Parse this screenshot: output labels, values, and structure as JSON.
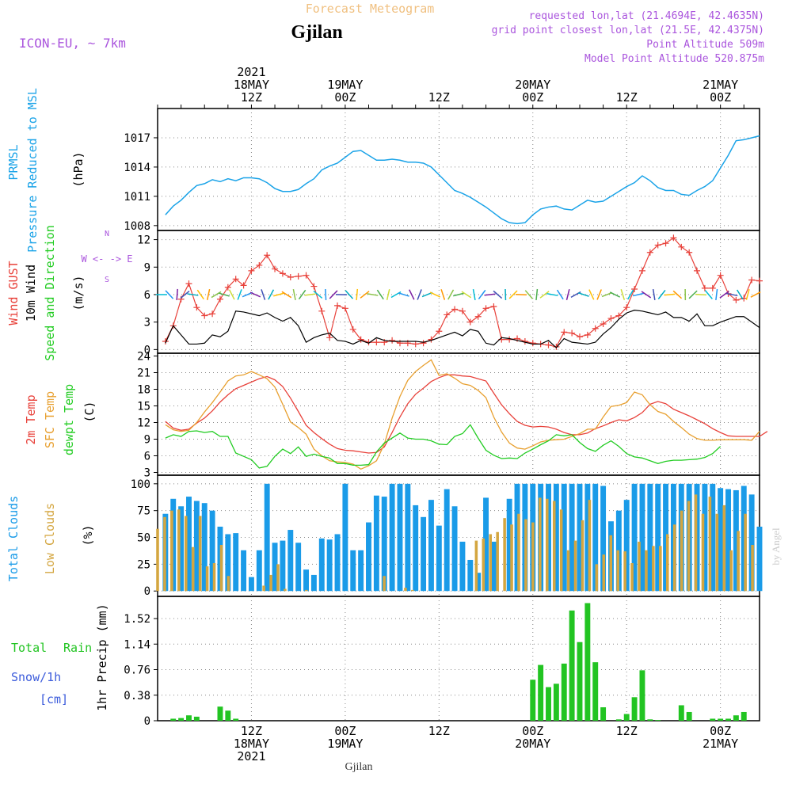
{
  "header": {
    "title": "Forecast Meteogram",
    "location": "Gjilan",
    "model": "ICON-EU, ~ 7km",
    "requested": "requested lon,lat (21.4694E, 42.4635N)",
    "grid_point": "grid point closest lon,lat (21.5E, 42.4375N)",
    "point_alt": "Point Altitude 509m",
    "model_alt": "Model Point Altitude 520.875m",
    "footer_location": "Gjilan",
    "credit": "by Angel"
  },
  "colors": {
    "pressure": "#1aa3e8",
    "gust": "#e8413a",
    "wind": "#000000",
    "temp2m": "#e8413a",
    "sfc": "#e8a030",
    "dewpt": "#22cc22",
    "total_clouds": "#1a9be8",
    "low_clouds": "#d4a640",
    "rain": "#22c422",
    "snow": "#3b5bdb",
    "purple": "#aa55dd"
  },
  "chart_data": [
    {
      "type": "line",
      "title": "PRMSL Pressure Reduced to MSL",
      "ylabel": "(hPa)",
      "ylim": [
        1007.5,
        1020
      ],
      "yticks": [
        1008,
        1011,
        1014,
        1017
      ],
      "x_hours": [
        1,
        3,
        5,
        7,
        9,
        11,
        13,
        15,
        17,
        19,
        21,
        23,
        25,
        27,
        29,
        31,
        33,
        35,
        37,
        39,
        41,
        43,
        45,
        47,
        49,
        51,
        53,
        55,
        57,
        59,
        61,
        63,
        65,
        67,
        69,
        71,
        73,
        75,
        77
      ],
      "series": [
        {
          "name": "PRMSL",
          "x": [
            1,
            2,
            3,
            4,
            5,
            6,
            7,
            8,
            9,
            10,
            11,
            12,
            13,
            14,
            15,
            16,
            17,
            18,
            19,
            20,
            21,
            22,
            23,
            24,
            25,
            26,
            27,
            28,
            29,
            30,
            31,
            32,
            33,
            34,
            35,
            36,
            37,
            38,
            39,
            40,
            41,
            42,
            43,
            44,
            45,
            46,
            47,
            48,
            49,
            50,
            51,
            52,
            53,
            54,
            55,
            56,
            57,
            58,
            59,
            60,
            61,
            62,
            63,
            64,
            65,
            66,
            67,
            68,
            69,
            70,
            71,
            72,
            73,
            74,
            75,
            76,
            77
          ],
          "values": [
            1009.1,
            1010.0,
            1010.6,
            1011.4,
            1012.1,
            1012.3,
            1012.7,
            1012.5,
            1012.8,
            1012.6,
            1012.9,
            1012.9,
            1012.8,
            1012.4,
            1011.8,
            1011.5,
            1011.5,
            1011.7,
            1012.3,
            1012.8,
            1013.7,
            1014.1,
            1014.4,
            1015.0,
            1015.6,
            1015.7,
            1015.2,
            1014.7,
            1014.7,
            1014.8,
            1014.7,
            1014.5,
            1014.5,
            1014.4,
            1014.0,
            1013.2,
            1012.4,
            1011.6,
            1011.3,
            1010.9,
            1010.4,
            1009.9,
            1009.3,
            1008.7,
            1008.3,
            1008.2,
            1008.3,
            1009.1,
            1009.7,
            1009.9,
            1010.0,
            1009.7,
            1009.6,
            1010.1,
            1010.6,
            1010.4,
            1010.5,
            1011.0,
            1011.5,
            1012.0,
            1012.4,
            1013.1,
            1012.6,
            1011.9,
            1011.6,
            1011.6,
            1011.2,
            1011.1,
            1011.6,
            1012.0,
            1012.6,
            1013.9,
            1015.2,
            1016.7,
            1016.8,
            1017.0,
            1017.2
          ]
        }
      ]
    },
    {
      "type": "line",
      "title": "Wind GUST / 10m Wind Speed and Direction",
      "ylabel": "(m/s)",
      "ylim": [
        -0.4,
        13
      ],
      "yticks": [
        0,
        3,
        6,
        9,
        12
      ],
      "series": [
        {
          "name": "Wind GUST",
          "values": [
            0.9,
            2.6,
            5.5,
            7.2,
            4.6,
            3.7,
            3.9,
            5.5,
            6.8,
            7.7,
            7.0,
            8.6,
            9.2,
            10.3,
            8.8,
            8.3,
            7.9,
            8.0,
            8.1,
            6.9,
            4.2,
            1.3,
            4.8,
            4.5,
            2.2,
            1.1,
            0.8,
            0.8,
            0.8,
            1.0,
            0.7,
            0.7,
            0.6,
            0.7,
            1.1,
            2.0,
            3.8,
            4.4,
            4.2,
            3.0,
            3.6,
            4.5,
            4.7,
            1.1,
            1.1,
            1.2,
            0.9,
            0.7,
            0.6,
            0.5,
            0.3,
            1.9,
            1.8,
            1.4,
            1.6,
            2.3,
            2.8,
            3.4,
            3.7,
            4.6,
            6.6,
            8.6,
            10.6,
            11.4,
            11.6,
            12.2,
            11.2,
            10.6,
            8.6,
            6.7,
            6.7,
            8.1,
            6.1,
            5.4,
            5.6,
            7.6,
            7.5
          ],
          "x0": 1
        },
        {
          "name": "10m Wind",
          "values": [
            0.7,
            2.6,
            1.6,
            0.6,
            0.6,
            0.7,
            1.6,
            1.4,
            2.0,
            4.2,
            4.1,
            3.9,
            3.7,
            4.0,
            3.5,
            3.1,
            3.5,
            2.6,
            0.8,
            1.3,
            1.6,
            1.8,
            1.0,
            0.9,
            0.6,
            1.0,
            0.7,
            1.3,
            1.0,
            0.9,
            0.9,
            0.9,
            0.9,
            0.8,
            1.0,
            1.3,
            1.6,
            1.9,
            1.5,
            2.2,
            2.0,
            0.7,
            0.5,
            1.3,
            1.2,
            1.0,
            0.8,
            0.6,
            0.6,
            1.0,
            0.2,
            1.2,
            0.8,
            0.7,
            0.6,
            0.8,
            1.7,
            2.4,
            3.3,
            4.0,
            4.3,
            4.2,
            4.0,
            3.8,
            4.1,
            3.5,
            3.5,
            3.1,
            3.9,
            2.6,
            2.6,
            3.0,
            3.3,
            3.6,
            3.6,
            3.0,
            2.4
          ],
          "x0": 1
        }
      ]
    },
    {
      "type": "line",
      "title": "2m Temp / SFC Temp / dewpt Temp",
      "ylabel": "(C)",
      "ylim": [
        2.5,
        24.5
      ],
      "yticks": [
        3,
        6,
        9,
        12,
        15,
        18,
        21,
        24
      ],
      "series": [
        {
          "name": "2m Temp",
          "values": [
            12.2,
            11.0,
            10.6,
            10.8,
            11.9,
            12.8,
            14.1,
            15.7,
            17.0,
            18.1,
            18.7,
            19.3,
            19.9,
            20.3,
            19.7,
            18.5,
            16.4,
            14.0,
            11.5,
            10.2,
            9.1,
            8.1,
            7.3,
            7.0,
            6.9,
            6.7,
            6.5,
            6.6,
            7.6,
            10.2,
            13.0,
            15.4,
            17.1,
            18.2,
            19.4,
            20.1,
            20.6,
            20.6,
            20.4,
            20.3,
            19.9,
            19.5,
            17.3,
            15.2,
            13.6,
            12.2,
            11.5,
            11.2,
            11.3,
            11.2,
            10.8,
            10.2,
            9.8,
            9.8,
            10.1,
            10.9,
            11.4,
            12.0,
            12.5,
            12.3,
            12.9,
            13.8,
            15.3,
            15.8,
            15.4,
            14.4,
            13.8,
            13.2,
            12.5,
            11.8,
            10.9,
            10.2,
            9.6,
            9.5,
            9.5,
            9.5,
            9.5,
            10.4
          ],
          "x0": 1
        },
        {
          "name": "SFC Temp",
          "values": [
            11.6,
            10.7,
            10.4,
            10.6,
            12.0,
            13.9,
            15.6,
            17.5,
            19.5,
            20.4,
            20.6,
            21.2,
            20.6,
            19.9,
            18.4,
            15.3,
            12.1,
            11.1,
            9.9,
            7.2,
            6.0,
            5.1,
            4.9,
            4.8,
            4.5,
            3.6,
            4.2,
            5.1,
            8.1,
            12.8,
            16.7,
            19.6,
            21.2,
            22.3,
            23.3,
            20.5,
            20.8,
            20.0,
            19.0,
            18.7,
            17.8,
            16.5,
            13.0,
            10.3,
            8.3,
            7.4,
            7.2,
            7.8,
            8.5,
            8.8,
            8.9,
            9.0,
            9.5,
            10.0,
            10.8,
            10.8,
            13.0,
            14.9,
            15.1,
            15.6,
            17.5,
            17.0,
            15.2,
            14.0,
            13.5,
            12.2,
            11.1,
            9.9,
            9.1,
            8.8,
            8.8,
            8.9,
            8.9,
            8.9,
            8.9,
            8.8,
            10.4
          ],
          "x0": 1
        },
        {
          "name": "dewpt Temp",
          "values": [
            9.2,
            9.8,
            9.5,
            10.4,
            10.5,
            10.2,
            10.4,
            9.5,
            9.5,
            6.5,
            5.9,
            5.3,
            3.8,
            4.1,
            5.9,
            7.2,
            6.4,
            7.6,
            5.9,
            6.3,
            5.9,
            5.6,
            4.6,
            4.6,
            4.3,
            4.3,
            4.4,
            6.7,
            8.3,
            9.2,
            10.1,
            9.2,
            9.0,
            9.0,
            8.7,
            8.1,
            8.0,
            9.5,
            10.0,
            11.6,
            9.2,
            7.0,
            6.1,
            5.5,
            5.6,
            5.5,
            6.5,
            7.2,
            8.0,
            8.7,
            9.8,
            9.6,
            9.8,
            8.4,
            7.3,
            6.8,
            7.9,
            8.7,
            7.7,
            6.4,
            5.8,
            5.6,
            5.1,
            4.6,
            5.0,
            5.2,
            5.2,
            5.3,
            5.4,
            5.7,
            6.4,
            7.7
          ],
          "x0": 1
        }
      ]
    },
    {
      "type": "bar",
      "title": "Total Clouds / Low Clouds",
      "ylabel": "(%)",
      "ylim": [
        -5,
        108
      ],
      "yticks": [
        0,
        25,
        50,
        75,
        100
      ],
      "series": [
        {
          "name": "Total Clouds",
          "values": [
            72,
            86,
            79,
            88,
            84,
            82,
            75,
            60,
            53,
            54,
            38,
            13,
            38,
            100,
            45,
            47,
            57,
            45,
            20,
            15,
            49,
            48,
            53,
            100,
            38,
            38,
            64,
            89,
            88,
            100,
            100,
            100,
            80,
            69,
            85,
            61,
            95,
            79,
            46,
            29,
            17,
            87,
            46,
            0,
            86,
            100,
            100,
            100,
            100,
            100,
            100,
            100,
            100,
            100,
            100,
            100,
            98,
            65,
            75,
            85,
            100,
            100,
            100,
            100,
            100,
            100,
            100,
            100,
            100,
            100,
            100,
            96,
            95,
            94,
            98,
            90,
            60
          ],
          "x0": 1
        },
        {
          "name": "Low Clouds",
          "values": [
            58,
            69,
            75,
            76,
            70,
            41,
            70,
            23,
            26,
            43,
            14,
            0,
            0,
            0,
            0,
            5,
            15,
            25,
            2,
            0,
            0,
            1,
            0,
            0,
            0,
            0,
            0,
            0,
            0,
            0,
            0,
            0,
            14,
            0,
            0,
            3,
            1,
            0,
            0,
            0,
            0,
            0,
            0,
            0,
            0,
            47,
            49,
            53,
            55,
            68,
            62,
            72,
            67,
            64,
            87,
            86,
            84,
            76,
            38,
            47,
            66,
            85,
            25,
            34,
            52,
            38,
            37,
            26,
            46,
            38,
            42,
            42,
            53,
            62,
            75,
            84,
            90,
            72,
            88,
            72,
            80,
            38,
            56,
            72,
            43
          ],
          "x0": 0
        }
      ]
    },
    {
      "type": "bar",
      "title": "Total Rain / Snow/1h [cm]",
      "ylabel": "1hr Precip (mm)",
      "ylim": [
        0,
        1.85
      ],
      "yticks": [
        0,
        0.38,
        0.76,
        1.14,
        1.52
      ],
      "series": [
        {
          "name": "Total Rain",
          "values": [
            0,
            0.03,
            0.04,
            0.08,
            0.06,
            0,
            0,
            0.21,
            0.15,
            0.03,
            0,
            0,
            0,
            0,
            0,
            0,
            0,
            0,
            0,
            0,
            0,
            0,
            0,
            0,
            0,
            0,
            0,
            0,
            0,
            0,
            0,
            0,
            0,
            0,
            0,
            0,
            0,
            0,
            0,
            0,
            0,
            0,
            0,
            0,
            0,
            0,
            0,
            0.61,
            0.83,
            0.5,
            0.55,
            0.85,
            1.64,
            1.17,
            1.75,
            0.87,
            0.2,
            0,
            0.02,
            0.1,
            0.35,
            0.75,
            0.02,
            0.01,
            0,
            0,
            0.23,
            0.13,
            0,
            0,
            0.03,
            0.03,
            0.03,
            0.08,
            0.13
          ],
          "x0": 1
        }
      ]
    }
  ],
  "time_axis": {
    "top_labels": [
      {
        "hours": 12,
        "lines": [
          "2021",
          "18MAY",
          "12Z"
        ]
      },
      {
        "hours": 24,
        "lines": [
          "19MAY",
          "00Z"
        ]
      },
      {
        "hours": 36,
        "lines": [
          "12Z"
        ]
      },
      {
        "hours": 48,
        "lines": [
          "20MAY",
          "00Z"
        ]
      },
      {
        "hours": 60,
        "lines": [
          "12Z"
        ]
      },
      {
        "hours": 72,
        "lines": [
          "21MAY",
          "00Z"
        ]
      }
    ],
    "bottom_labels": [
      {
        "hours": 12,
        "lines": [
          "12Z",
          "18MAY",
          "2021"
        ]
      },
      {
        "hours": 24,
        "lines": [
          "00Z",
          "19MAY"
        ]
      },
      {
        "hours": 36,
        "lines": [
          "12Z"
        ]
      },
      {
        "hours": 48,
        "lines": [
          "00Z",
          "20MAY"
        ]
      },
      {
        "hours": 60,
        "lines": [
          "12Z"
        ]
      },
      {
        "hours": 72,
        "lines": [
          "00Z",
          "21MAY"
        ]
      }
    ],
    "range": [
      0,
      77
    ]
  },
  "panel_labels": {
    "p1": [
      "PRMSL",
      "Pressure Reduced to MSL"
    ],
    "p2": [
      "Wind GUST",
      "10m Wind",
      "Speed and Direction"
    ],
    "p2_compass": [
      "N",
      "W <- -> E",
      "S"
    ],
    "p3": [
      "2m Temp",
      "SFC Temp",
      "dewpt Temp"
    ],
    "p4": [
      "Total Clouds",
      "Low Clouds"
    ],
    "p5": [
      "Total",
      "Rain",
      "Snow/1h",
      "[cm]"
    ]
  }
}
